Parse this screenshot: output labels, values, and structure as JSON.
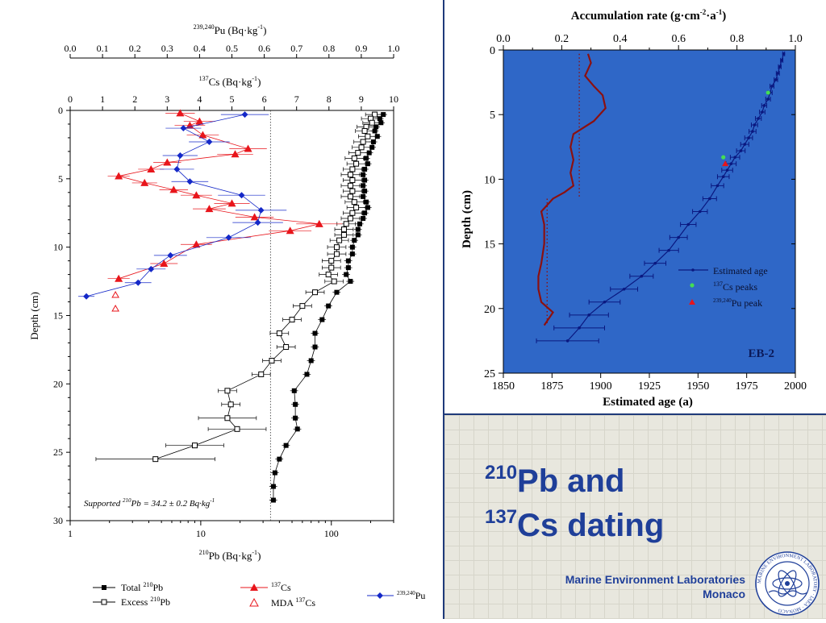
{
  "slide": {
    "title_iso1": "210",
    "title_el1": "Pb and",
    "title_iso2": "137",
    "title_el2": "Cs dating",
    "lab_line1": "Marine Environment Laboratories",
    "lab_line2": "Monaco",
    "logo_text": "MARINE ENVIRONMENT LABORATORY · IAEA · MONACO"
  },
  "colors": {
    "title_blue": "#1f3f99",
    "cs_red": "#e8151b",
    "pu_blue": "#1428c8",
    "age_blue": "#0a1880",
    "plot_bg": "#2f67c7",
    "accum_line": "#8b1010",
    "cs_peak_green": "#44dd55"
  },
  "chart_data": [
    {
      "type": "scatter",
      "panel": "left",
      "x_axis_pb": {
        "label_sup": "210",
        "label_main": "Pb (Bq·kg",
        "label_exp": "-1",
        "label_end": ")",
        "scale": "log",
        "range": [
          1,
          300
        ],
        "tick_labels": [
          "1",
          "10",
          "100"
        ]
      },
      "x_axis_cs": {
        "label_sup": "137",
        "label_main": "Cs (Bq·kg",
        "label_exp": "-1",
        "label_end": ")",
        "range": [
          0,
          10
        ],
        "tick_labels": [
          "0",
          "1",
          "2",
          "3",
          "4",
          "5",
          "6",
          "7",
          "8",
          "9",
          "10"
        ]
      },
      "x_axis_pu": {
        "label_sup": "239,240",
        "label_main": "Pu (Bq·kg",
        "label_exp": "-1",
        "label_end": ")",
        "range": [
          0,
          1.0
        ],
        "tick_labels": [
          "0.0",
          "0.1",
          "0.2",
          "0.3",
          "0.4",
          "0.5",
          "0.6",
          "0.7",
          "0.8",
          "0.9",
          "1.0"
        ]
      },
      "y_axis": {
        "label": "Depth (cm)",
        "range": [
          0,
          30
        ],
        "reversed": true,
        "tick_labels": [
          "0",
          "5",
          "10",
          "15",
          "20",
          "25",
          "30"
        ]
      },
      "annotation": {
        "prefix": "Supported ",
        "sup": "210",
        "text": "Pb = 34.2 ± 0.2 Bq·kg",
        "exp": "-1",
        "supported_value": 34.2
      },
      "legend": {
        "total_prefix": "Total ",
        "total_sup": "210",
        "total_suffix": "Pb",
        "excess_prefix": "Excess ",
        "excess_sup": "210",
        "excess_suffix": "Pb",
        "cs_sup": "137",
        "cs_suffix": "Cs",
        "mda_prefix": "MDA ",
        "mda_sup": "137",
        "mda_suffix": "Cs",
        "pu_sup": "239,240",
        "pu_suffix": "Pu"
      },
      "total_pb": [
        [
          0.3,
          250
        ],
        [
          0.6,
          235
        ],
        [
          0.9,
          240
        ],
        [
          1.2,
          220
        ],
        [
          1.5,
          215
        ],
        [
          1.9,
          225
        ],
        [
          2.3,
          210
        ],
        [
          2.7,
          205
        ],
        [
          3.1,
          195
        ],
        [
          3.5,
          185
        ],
        [
          3.9,
          190
        ],
        [
          4.3,
          180
        ],
        [
          4.7,
          175
        ],
        [
          5.1,
          180
        ],
        [
          5.5,
          175
        ],
        [
          5.9,
          180
        ],
        [
          6.3,
          175
        ],
        [
          6.7,
          185
        ],
        [
          7.1,
          190
        ],
        [
          7.5,
          180
        ],
        [
          7.9,
          175
        ],
        [
          8.3,
          165
        ],
        [
          8.7,
          160
        ],
        [
          9.1,
          160
        ],
        [
          9.5,
          150
        ],
        [
          10.0,
          145
        ],
        [
          10.5,
          145
        ],
        [
          11.0,
          135
        ],
        [
          11.5,
          135
        ],
        [
          12.0,
          130
        ],
        [
          12.5,
          140
        ],
        [
          13.3,
          110
        ],
        [
          14.3,
          95
        ],
        [
          15.3,
          85
        ],
        [
          16.3,
          75
        ],
        [
          17.3,
          75
        ],
        [
          18.3,
          70
        ],
        [
          19.3,
          65
        ],
        [
          20.5,
          52
        ],
        [
          21.5,
          53
        ],
        [
          22.5,
          53
        ],
        [
          23.3,
          55
        ],
        [
          24.5,
          45
        ],
        [
          25.5,
          40
        ],
        [
          26.5,
          37
        ],
        [
          27.5,
          36
        ],
        [
          28.5,
          36
        ]
      ],
      "excess_pb": [
        [
          0.3,
          215
        ],
        [
          0.6,
          200
        ],
        [
          0.9,
          205
        ],
        [
          1.2,
          185
        ],
        [
          1.5,
          180
        ],
        [
          1.9,
          190
        ],
        [
          2.3,
          175
        ],
        [
          2.7,
          170
        ],
        [
          3.1,
          160
        ],
        [
          3.5,
          150
        ],
        [
          3.9,
          155
        ],
        [
          4.3,
          145
        ],
        [
          4.7,
          140
        ],
        [
          5.1,
          145
        ],
        [
          5.5,
          140
        ],
        [
          5.9,
          145
        ],
        [
          6.3,
          140
        ],
        [
          6.7,
          150
        ],
        [
          7.1,
          155
        ],
        [
          7.5,
          145
        ],
        [
          7.9,
          140
        ],
        [
          8.3,
          130
        ],
        [
          8.7,
          125
        ],
        [
          9.1,
          125
        ],
        [
          9.5,
          115
        ],
        [
          10.0,
          110
        ],
        [
          10.5,
          110
        ],
        [
          11.0,
          100
        ],
        [
          11.5,
          100
        ],
        [
          12.0,
          95
        ],
        [
          12.5,
          105
        ],
        [
          13.3,
          75
        ],
        [
          14.3,
          60
        ],
        [
          15.3,
          50
        ],
        [
          16.3,
          40
        ],
        [
          17.3,
          45
        ],
        [
          18.3,
          35
        ],
        [
          19.3,
          29
        ],
        [
          20.5,
          16
        ],
        [
          21.5,
          17
        ],
        [
          22.5,
          16
        ],
        [
          23.3,
          19
        ],
        [
          24.5,
          9
        ],
        [
          25.5,
          4.5
        ]
      ],
      "cs137": [
        [
          0.2,
          3.4
        ],
        [
          0.8,
          4.0
        ],
        [
          1.1,
          3.7
        ],
        [
          1.8,
          4.1
        ],
        [
          2.8,
          5.5
        ],
        [
          3.2,
          5.1
        ],
        [
          3.8,
          3.0
        ],
        [
          4.3,
          2.5
        ],
        [
          4.8,
          1.5
        ],
        [
          5.3,
          2.3
        ],
        [
          5.8,
          3.2
        ],
        [
          6.2,
          3.9
        ],
        [
          6.8,
          5.0
        ],
        [
          7.2,
          4.3
        ],
        [
          7.8,
          5.7
        ],
        [
          8.3,
          7.7
        ],
        [
          8.8,
          6.8
        ],
        [
          9.8,
          3.9
        ],
        [
          11.2,
          2.9
        ],
        [
          12.3,
          1.5
        ]
      ],
      "mda_cs137": [
        [
          13.5,
          1.4
        ],
        [
          14.5,
          1.4
        ]
      ],
      "pu239240": [
        [
          0.3,
          0.54
        ],
        [
          1.3,
          0.35
        ],
        [
          2.3,
          0.43
        ],
        [
          3.3,
          0.34
        ],
        [
          4.3,
          0.33
        ],
        [
          5.2,
          0.37
        ],
        [
          6.2,
          0.53
        ],
        [
          7.3,
          0.59
        ],
        [
          8.2,
          0.58
        ],
        [
          9.3,
          0.49
        ],
        [
          10.6,
          0.31
        ],
        [
          11.6,
          0.25
        ],
        [
          12.6,
          0.21
        ],
        [
          13.6,
          0.05
        ]
      ]
    },
    {
      "type": "line",
      "panel": "right",
      "title_main": "Accumulation rate (g·cm",
      "title_exp1": "-2",
      "title_mid": "·a",
      "title_exp2": "-1",
      "title_end": ")",
      "x_axis_top": {
        "range": [
          0.0,
          1.0
        ],
        "tick_labels": [
          "0.0",
          "0.2",
          "0.4",
          "0.6",
          "0.8",
          "1.0"
        ]
      },
      "x_axis_bottom": {
        "label": "Estimated age (a)",
        "range": [
          1850,
          2000
        ],
        "tick_labels": [
          "1850",
          "1875",
          "1900",
          "1925",
          "1950",
          "1975",
          "2000"
        ]
      },
      "y_axis": {
        "label": "Depth (cm)",
        "range": [
          0,
          25
        ],
        "reversed": true,
        "tick_labels": [
          "0",
          "5",
          "10",
          "15",
          "20",
          "25"
        ]
      },
      "site_label": "EB-2",
      "legend": {
        "age": "Estimated age",
        "cs_sup": "137",
        "cs_suffix": "Cs peaks",
        "pu_sup": "239,240",
        "pu_suffix": "Pu peak"
      },
      "estimated_age": [
        [
          0.3,
          1994,
          0.5
        ],
        [
          0.8,
          1993,
          0.6
        ],
        [
          1.3,
          1992,
          0.7
        ],
        [
          1.8,
          1991,
          0.8
        ],
        [
          2.3,
          1990,
          0.9
        ],
        [
          2.8,
          1988,
          1.0
        ],
        [
          3.3,
          1987,
          1.1
        ],
        [
          3.8,
          1986,
          1.2
        ],
        [
          4.3,
          1984,
          1.3
        ],
        [
          4.8,
          1983,
          1.4
        ],
        [
          5.3,
          1981,
          1.5
        ],
        [
          5.8,
          1979,
          1.6
        ],
        [
          6.3,
          1978,
          1.8
        ],
        [
          6.8,
          1976,
          2.0
        ],
        [
          7.3,
          1974,
          2.1
        ],
        [
          7.8,
          1972,
          2.2
        ],
        [
          8.3,
          1969,
          2.4
        ],
        [
          8.8,
          1967,
          2.6
        ],
        [
          9.3,
          1965,
          2.8
        ],
        [
          9.8,
          1963,
          3.0
        ],
        [
          10.5,
          1960,
          3.2
        ],
        [
          11.5,
          1956,
          3.5
        ],
        [
          12.5,
          1951,
          3.8
        ],
        [
          13.5,
          1945,
          4.0
        ],
        [
          14.5,
          1940,
          4.5
        ],
        [
          15.5,
          1935,
          5.0
        ],
        [
          16.5,
          1928,
          5.5
        ],
        [
          17.5,
          1921,
          6.0
        ],
        [
          18.5,
          1912,
          7.0
        ],
        [
          19.5,
          1902,
          8.0
        ],
        [
          20.5,
          1894,
          10.0
        ],
        [
          21.5,
          1889,
          13.0
        ],
        [
          22.5,
          1883,
          16.0
        ]
      ],
      "cs_peaks": [
        [
          3.3,
          1986
        ],
        [
          8.3,
          1963
        ]
      ],
      "pu_peak": [
        [
          8.8,
          1964
        ]
      ],
      "accumulation_rate": [
        [
          0.3,
          0.29
        ],
        [
          1.0,
          0.3
        ],
        [
          2.0,
          0.28
        ],
        [
          2.8,
          0.31
        ],
        [
          3.5,
          0.34
        ],
        [
          4.5,
          0.35
        ],
        [
          5.5,
          0.31
        ],
        [
          6.5,
          0.24
        ],
        [
          7.5,
          0.23
        ],
        [
          8.5,
          0.24
        ],
        [
          9.5,
          0.23
        ],
        [
          10.5,
          0.24
        ],
        [
          11.0,
          0.21
        ],
        [
          11.5,
          0.17
        ],
        [
          12.5,
          0.13
        ],
        [
          13.5,
          0.14
        ],
        [
          15.0,
          0.14
        ],
        [
          16.5,
          0.13
        ],
        [
          17.5,
          0.12
        ],
        [
          18.5,
          0.12
        ],
        [
          19.5,
          0.13
        ],
        [
          20.3,
          0.17
        ],
        [
          21.3,
          0.14
        ]
      ],
      "accumulation_uncertainty": [
        [
          0.3,
          0.26
        ],
        [
          3.0,
          0.26
        ],
        [
          6.0,
          0.26
        ],
        [
          9.0,
          0.26
        ],
        [
          11.5,
          0.26
        ],
        [
          11.5,
          0.15
        ],
        [
          14.0,
          0.15
        ],
        [
          17.0,
          0.15
        ],
        [
          20.0,
          0.15
        ],
        [
          21.3,
          0.15
        ]
      ]
    }
  ]
}
